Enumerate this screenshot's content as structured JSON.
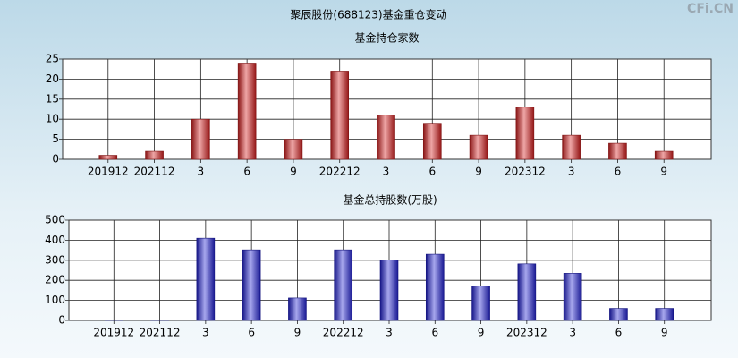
{
  "page_title": "聚辰股份(688123)基金重仓变动",
  "watermark": "CFi.CN",
  "chart_data": [
    {
      "type": "bar",
      "title": "基金持仓家数",
      "categories": [
        "201912",
        "202112",
        "3",
        "6",
        "9",
        "202212",
        "3",
        "6",
        "9",
        "202312",
        "3",
        "6",
        "9"
      ],
      "values": [
        1,
        2,
        10,
        24,
        5,
        22,
        11,
        9,
        6,
        13,
        6,
        4,
        2
      ],
      "color": "#d42020",
      "ylim": [
        0,
        25
      ],
      "yticks": [
        0,
        5,
        10,
        15,
        20,
        25
      ],
      "grid": true
    },
    {
      "type": "bar",
      "title": "基金总持股数(万股)",
      "categories": [
        "201912",
        "202112",
        "3",
        "6",
        "9",
        "202212",
        "3",
        "6",
        "9",
        "202312",
        "3",
        "6",
        "9"
      ],
      "values": [
        3,
        3,
        410,
        352,
        112,
        352,
        302,
        330,
        172,
        282,
        235,
        60,
        60
      ],
      "color": "#2222d2",
      "ylim": [
        0,
        500
      ],
      "yticks": [
        0,
        100,
        200,
        300,
        400,
        500
      ],
      "grid": true
    }
  ]
}
